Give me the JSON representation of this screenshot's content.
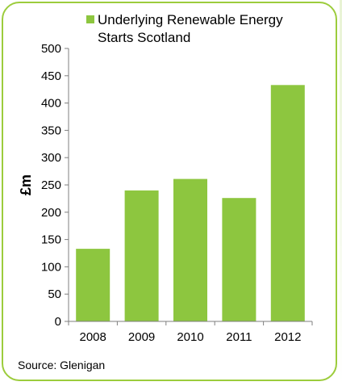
{
  "source_text": "Source: Glenigan",
  "colors": {
    "bar": "#8dc63f",
    "frame": "#9ccc3c",
    "axis": "#7f7f7f"
  },
  "chart_data": {
    "type": "bar",
    "categories": [
      "2008",
      "2009",
      "2010",
      "2011",
      "2012"
    ],
    "series": [
      {
        "name": "Underlying Renewable Energy Starts Scotland",
        "values": [
          133,
          240,
          261,
          226,
          433
        ]
      }
    ],
    "legend_lines": [
      "Underlying Renewable Energy",
      "Starts Scotland"
    ],
    "ylabel": "£m",
    "xlabel": "",
    "ylim": [
      0,
      500
    ],
    "yticks": [
      0,
      50,
      100,
      150,
      200,
      250,
      300,
      350,
      400,
      450,
      500
    ],
    "grid": false,
    "legend_position": "top"
  }
}
